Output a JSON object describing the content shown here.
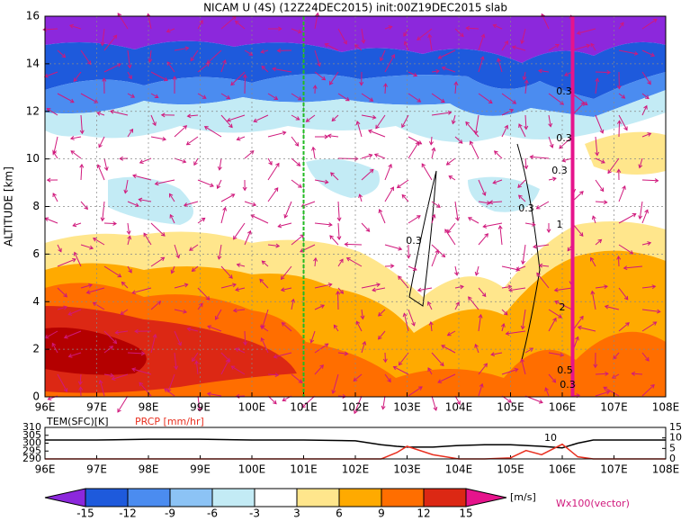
{
  "chart_data": [
    {
      "type": "contour",
      "title": "NICAM U (4S) (12Z24DEC2015) init:00Z19DEC2015 slab",
      "ylabel": "ALTITUDE [km]",
      "xlim": [
        96,
        108
      ],
      "xticks": [
        {
          "value": 96,
          "label": "96E"
        },
        {
          "value": 97,
          "label": "97E"
        },
        {
          "value": 98,
          "label": "98E"
        },
        {
          "value": 99,
          "label": "99E"
        },
        {
          "value": 100,
          "label": "100E"
        },
        {
          "value": 101,
          "label": "101E"
        },
        {
          "value": 102,
          "label": "102E"
        },
        {
          "value": 103,
          "label": "103E"
        },
        {
          "value": 104,
          "label": "104E"
        },
        {
          "value": 105,
          "label": "105E"
        },
        {
          "value": 106,
          "label": "106E"
        },
        {
          "value": 107,
          "label": "107E"
        },
        {
          "value": 108,
          "label": "108E"
        }
      ],
      "ylim": [
        0,
        16
      ],
      "yticks": [
        0,
        2,
        4,
        6,
        8,
        10,
        12,
        14,
        16
      ],
      "grid": true,
      "vlines": [
        {
          "value": 101,
          "color": "#22bb22"
        },
        {
          "value": 106.2,
          "color": "#e6148c"
        }
      ],
      "annotations": [
        "0.3",
        "0.3",
        "0.3",
        "0.3",
        "0.3",
        "1",
        "2",
        "0.5",
        "0.3"
      ],
      "colorbar": {
        "levels": [
          -15,
          -12,
          -9,
          -6,
          -3,
          3,
          6,
          9,
          12,
          15
        ],
        "colors": [
          "#8c28dc",
          "#1e5adc",
          "#4b8cf0",
          "#8cc3f5",
          "#c3ebf5",
          "#ffffff",
          "#ffe68c",
          "#ffaa00",
          "#ff6e00",
          "#dc2814",
          "#e6148c"
        ],
        "unit": "[m/s]"
      },
      "vector_label": "Wx100(vector)"
    },
    {
      "type": "line",
      "xlim": [
        96,
        108
      ],
      "xticks": [
        {
          "value": 96,
          "label": "96E"
        },
        {
          "value": 97,
          "label": "97E"
        },
        {
          "value": 98,
          "label": "98E"
        },
        {
          "value": 99,
          "label": "99E"
        },
        {
          "value": 100,
          "label": "100E"
        },
        {
          "value": 101,
          "label": "101E"
        },
        {
          "value": 102,
          "label": "102E"
        },
        {
          "value": 103,
          "label": "103E"
        },
        {
          "value": 104,
          "label": "104E"
        },
        {
          "value": 105,
          "label": "105E"
        },
        {
          "value": 106,
          "label": "106E"
        },
        {
          "value": 107,
          "label": "107E"
        },
        {
          "value": 108,
          "label": "108E"
        }
      ],
      "ylim": [
        290,
        310
      ],
      "yticks": [
        290,
        295,
        300,
        305,
        310
      ],
      "y2lim": [
        0,
        15
      ],
      "y2ticks": [
        0,
        5,
        10,
        15
      ],
      "x": [
        96,
        97,
        98,
        99,
        100,
        101,
        102,
        102.5,
        102.8,
        103,
        103.5,
        104,
        104.5,
        105,
        105.3,
        105.6,
        106,
        106.3,
        106.6,
        107,
        108
      ],
      "series": [
        {
          "name": "TEM(SFC)[K]",
          "color": "#000000",
          "axis": "y",
          "values": [
            302,
            302,
            302.5,
            302.5,
            302,
            302,
            301.5,
            299,
            298,
            297.5,
            297.5,
            298.5,
            299,
            299,
            298.5,
            298,
            297,
            300,
            302,
            302,
            302
          ]
        },
        {
          "name": "PRCP [mm/hr]",
          "color": "#e83020",
          "axis": "y2",
          "values": [
            0,
            0,
            0,
            0,
            0,
            0,
            0,
            0,
            3,
            6,
            2,
            0,
            0,
            0.5,
            4,
            2,
            7,
            1,
            0,
            0,
            0
          ]
        }
      ],
      "annotations": [
        "10"
      ]
    }
  ]
}
